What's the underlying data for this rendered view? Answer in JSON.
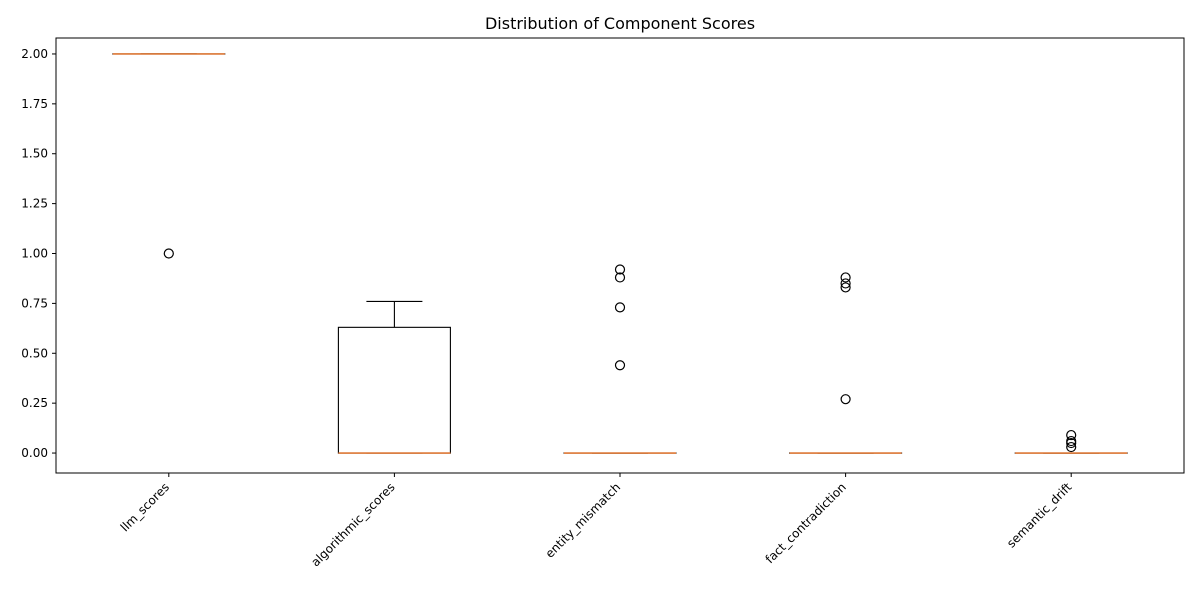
{
  "chart_data": {
    "type": "box",
    "title": "Distribution of Component Scores",
    "xlabel": "",
    "ylabel": "",
    "ylim": [
      -0.1,
      2.08
    ],
    "yticks": [
      "0.00",
      "0.25",
      "0.50",
      "0.75",
      "1.00",
      "1.25",
      "1.50",
      "1.75",
      "2.00"
    ],
    "grid": false,
    "colors": {
      "box": "#000000",
      "median": "#e07b39",
      "flier": "#000000"
    },
    "categories": [
      "llm_scores",
      "algorithmic_scores",
      "entity_mismatch",
      "fact_contradiction",
      "semantic_drift"
    ],
    "boxes": [
      {
        "name": "llm_scores",
        "whislo": 2.0,
        "q1": 2.0,
        "med": 2.0,
        "q3": 2.0,
        "whishi": 2.0,
        "fliers": [
          1.0
        ]
      },
      {
        "name": "algorithmic_scores",
        "whislo": 0.0,
        "q1": 0.0,
        "med": 0.0,
        "q3": 0.63,
        "whishi": 0.76,
        "fliers": []
      },
      {
        "name": "entity_mismatch",
        "whislo": 0.0,
        "q1": 0.0,
        "med": 0.0,
        "q3": 0.0,
        "whishi": 0.0,
        "fliers": [
          0.44,
          0.73,
          0.88,
          0.92
        ]
      },
      {
        "name": "fact_contradiction",
        "whislo": 0.0,
        "q1": 0.0,
        "med": 0.0,
        "q3": 0.0,
        "whishi": 0.0,
        "fliers": [
          0.27,
          0.83,
          0.85,
          0.88
        ]
      },
      {
        "name": "semantic_drift",
        "whislo": 0.0,
        "q1": 0.0,
        "med": 0.0,
        "q3": 0.0,
        "whishi": 0.0,
        "fliers": [
          0.03,
          0.05,
          0.06,
          0.09
        ]
      }
    ]
  }
}
